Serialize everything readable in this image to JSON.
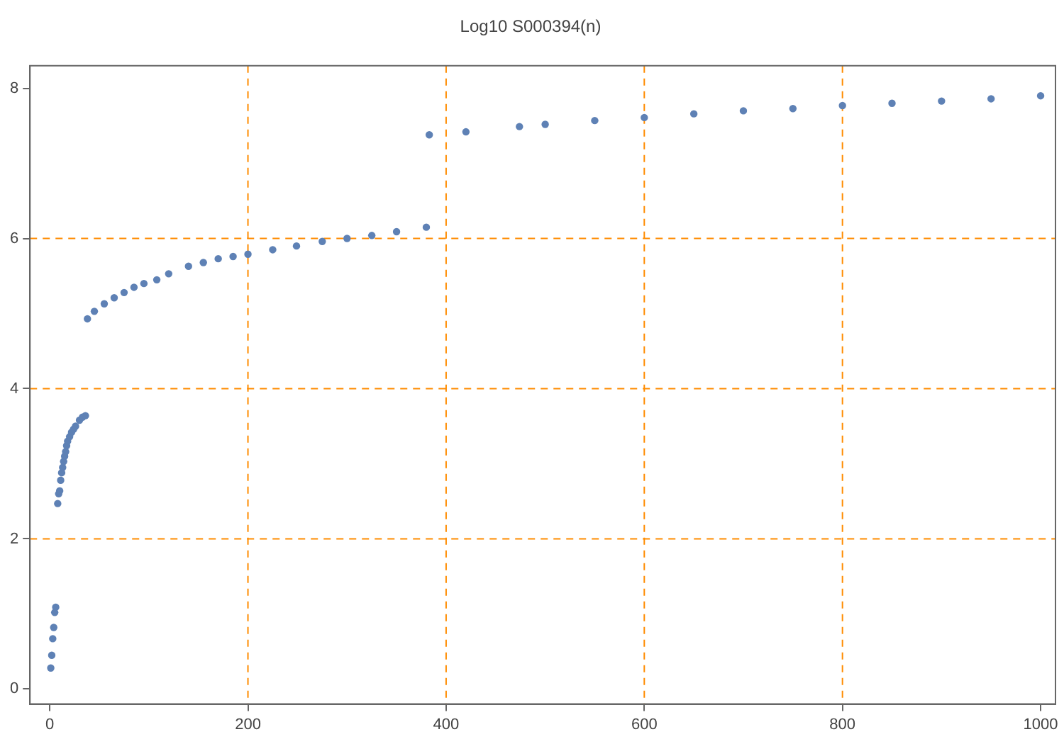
{
  "chart_data": {
    "type": "scatter",
    "title": "Log10 S000394(n)",
    "x": [
      1,
      2,
      3,
      4,
      5,
      6,
      8,
      9,
      10,
      11,
      12,
      13,
      14,
      15,
      16,
      17,
      18,
      20,
      22,
      24,
      26,
      30,
      33,
      36,
      38,
      45,
      55,
      65,
      75,
      85,
      95,
      108,
      120,
      140,
      155,
      170,
      185,
      200,
      225,
      249,
      275,
      300,
      325,
      350,
      380,
      383,
      420,
      474,
      500,
      550,
      600,
      650,
      700,
      750,
      800,
      850,
      900,
      950,
      1000
    ],
    "series": [
      {
        "color": "#5e81b5",
        "values": [
          0.28,
          0.45,
          0.67,
          0.82,
          1.02,
          1.09,
          2.47,
          2.6,
          2.64,
          2.78,
          2.88,
          2.95,
          3.03,
          3.1,
          3.16,
          3.24,
          3.3,
          3.36,
          3.42,
          3.46,
          3.5,
          3.58,
          3.62,
          3.64,
          4.93,
          5.03,
          5.13,
          5.21,
          5.28,
          5.35,
          5.4,
          5.45,
          5.53,
          5.63,
          5.68,
          5.73,
          5.76,
          5.79,
          5.85,
          5.9,
          5.96,
          6.0,
          6.04,
          6.09,
          6.15,
          7.38,
          7.42,
          7.49,
          7.52,
          7.57,
          7.61,
          7.66,
          7.7,
          7.73,
          7.77,
          7.8,
          7.83,
          7.86,
          7.9
        ]
      }
    ],
    "xlim": [
      -20,
      1015
    ],
    "ylim": [
      -0.2,
      8.3
    ],
    "xticks": [
      0,
      200,
      400,
      600,
      800,
      1000
    ],
    "yticks": [
      0,
      2,
      4,
      6,
      8
    ],
    "marker": "circle",
    "grid": false,
    "legend": false,
    "ref_lines": [
      {
        "axis": "y",
        "value": 2,
        "color": "#ff8c00",
        "line_style": "dashed"
      },
      {
        "axis": "y",
        "value": 4,
        "color": "#ff8c00",
        "line_style": "dashed"
      },
      {
        "axis": "y",
        "value": 6,
        "color": "#ff8c00",
        "line_style": "dashed"
      },
      {
        "axis": "x",
        "value": 200,
        "color": "#ff8c00",
        "line_style": "dashed"
      },
      {
        "axis": "x",
        "value": 400,
        "color": "#ff8c00",
        "line_style": "dashed"
      },
      {
        "axis": "x",
        "value": 600,
        "color": "#ff8c00",
        "line_style": "dashed"
      },
      {
        "axis": "x",
        "value": 800,
        "color": "#ff8c00",
        "line_style": "dashed"
      }
    ]
  }
}
